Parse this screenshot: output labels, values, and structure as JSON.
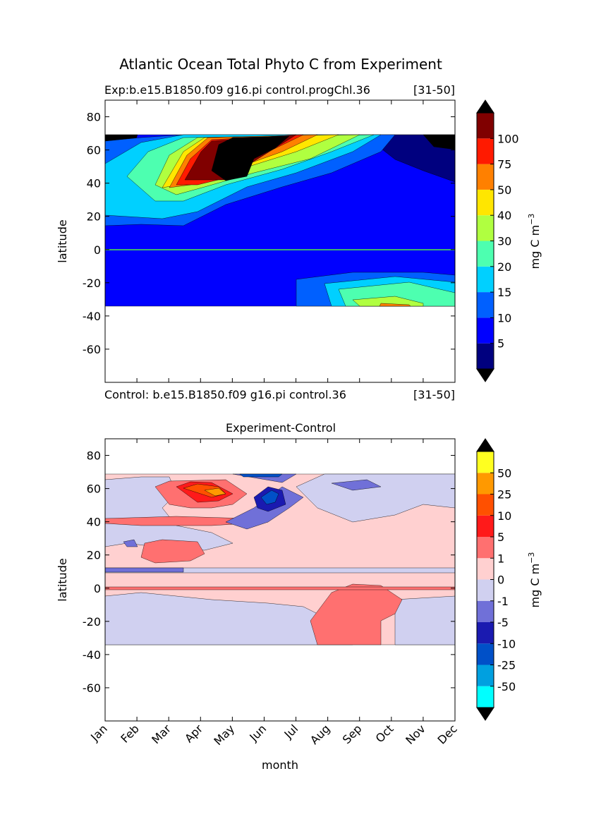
{
  "suptitle": "Atlantic Ocean Total Phyto C from Experiment",
  "chart_data": [
    {
      "type": "contour",
      "title_left": "Exp:b.e15.B1850.f09 g16.pi control.progChl.36",
      "title_right": "[31-50]",
      "footer_left": "Control: b.e15.B1850.f09 g16.pi control.36",
      "footer_right": "[31-50]",
      "ylabel": "latitude",
      "ylim": [
        -80,
        90
      ],
      "yticks": [
        -60,
        -40,
        -20,
        0,
        20,
        40,
        60,
        80
      ],
      "colorbar": {
        "levels": [
          5,
          10,
          15,
          20,
          30,
          40,
          50,
          75,
          100
        ],
        "colors": [
          "#00007f",
          "#0000ff",
          "#0060ff",
          "#00d0ff",
          "#4dffb0",
          "#b0ff40",
          "#ffe600",
          "#ff8000",
          "#ff1a00",
          "#800000"
        ],
        "over_color": "#000000",
        "under_color": "#000000",
        "label": "mg C m",
        "label_sup": "−3"
      }
    },
    {
      "type": "contour",
      "title": "Experiment-Control",
      "ylabel": "latitude",
      "xlabel": "month",
      "categories": [
        "Jan",
        "Feb",
        "Mar",
        "Apr",
        "May",
        "Jun",
        "Jul",
        "Aug",
        "Sep",
        "Oct",
        "Nov",
        "Dec"
      ],
      "ylim": [
        -80,
        90
      ],
      "yticks": [
        -60,
        -40,
        -20,
        0,
        20,
        40,
        60,
        80
      ],
      "colorbar": {
        "levels": [
          -50,
          -25,
          -10,
          -5,
          -1,
          0,
          1,
          5,
          10,
          25,
          50
        ],
        "colors": [
          "#00ffff",
          "#00a0e0",
          "#0050c8",
          "#1a1ab0",
          "#7070d8",
          "#d0d0f0",
          "#ffd0d0",
          "#ff7070",
          "#ff1a1a",
          "#ff5000",
          "#ff9900",
          "#ffff20"
        ],
        "over_color": "#000000",
        "under_color": "#000000",
        "label": "mg C m",
        "label_sup": "−3"
      }
    }
  ]
}
